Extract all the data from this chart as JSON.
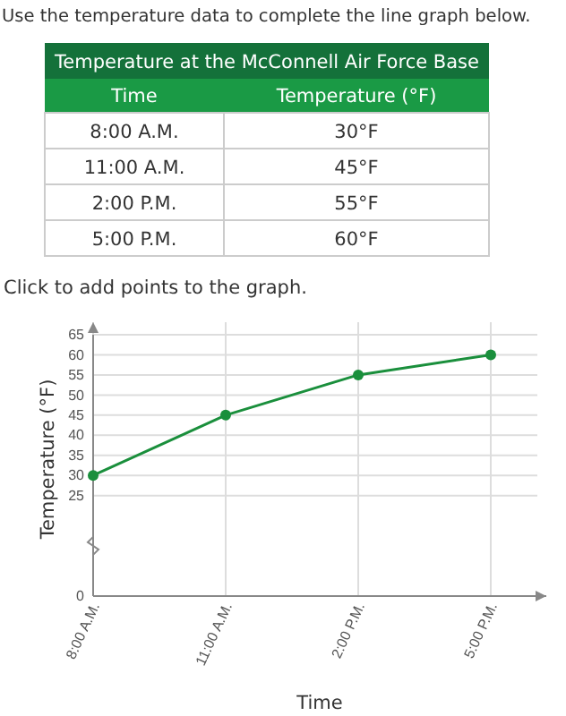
{
  "chart_data": {
    "type": "line",
    "title": "Use the temperature data to complete the line graph below.",
    "annotations": [
      "Temperature at the McConnell Air Force Base",
      "Time",
      "Temperature (°F)",
      "Click to add points to the graph.",
      "30°F",
      "45°F",
      "55°F",
      "60°F"
    ],
    "categories": [
      "8:00 A.M.",
      "11:00 A.M.",
      "2:00 P.M.",
      "5:00 P.M."
    ],
    "series": [
      {
        "color": "#1a8f3c",
        "values": [
          30,
          45,
          55,
          60
        ]
      }
    ],
    "xlabel": "Time",
    "ylabel": "Temperature (°F)",
    "ylim": [
      0,
      65
    ],
    "yticks": [
      0,
      25,
      30,
      35,
      40,
      45,
      50,
      55,
      60,
      65
    ],
    "grid": true,
    "marker": "circle",
    "line_style": "solid"
  }
}
